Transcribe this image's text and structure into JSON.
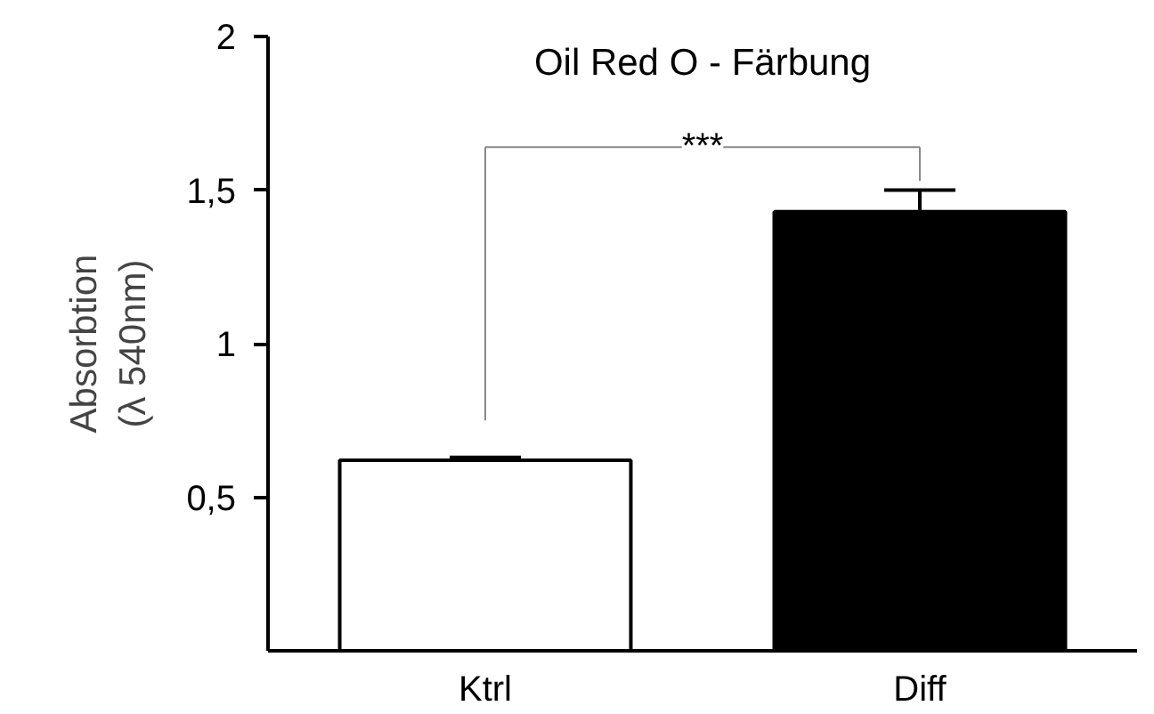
{
  "chart_data": {
    "type": "bar",
    "title": "Oil Red O - Färbung",
    "ylabel": "Absorbtion\n(λ 540nm)",
    "categories": [
      "Ktrl",
      "Diff"
    ],
    "values": [
      0.62,
      1.43
    ],
    "colors": [
      "#ffffff",
      "#000000"
    ],
    "errors": [
      [
        0.62,
        0.63
      ],
      [
        1.43,
        1.5
      ]
    ],
    "ylim": [
      0,
      2
    ],
    "yticks": [
      {
        "value": 0.5,
        "label": "0,5"
      },
      {
        "value": 1,
        "label": "1"
      },
      {
        "value": 1.5,
        "label": "1,5"
      },
      {
        "value": 2,
        "label": "2"
      }
    ],
    "grid": false,
    "annotations": [
      "***"
    ]
  }
}
